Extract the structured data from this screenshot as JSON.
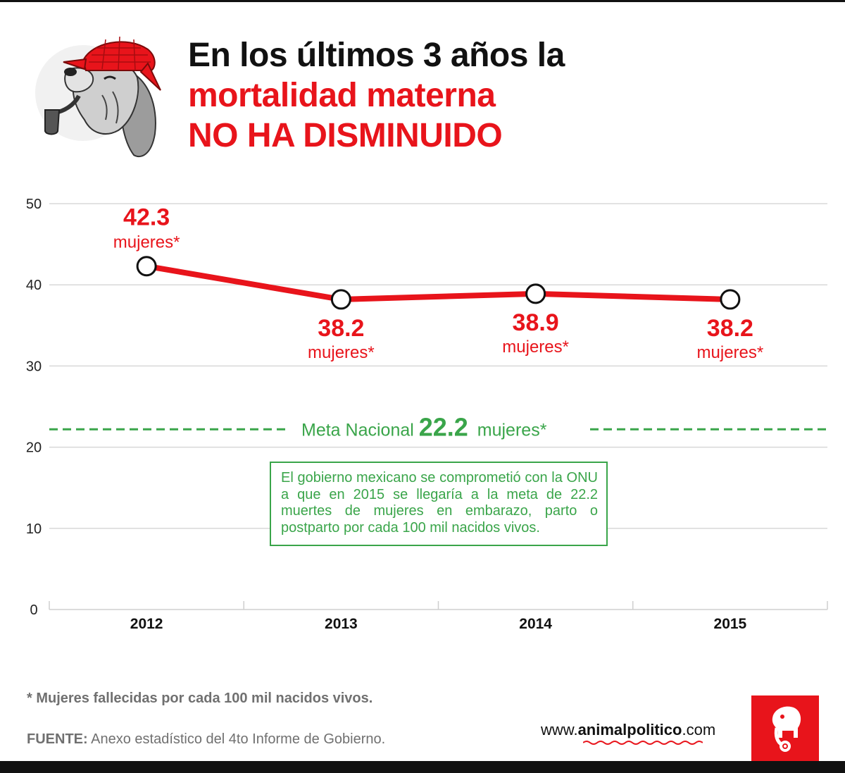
{
  "header": {
    "line1": "En los últimos 3 años la",
    "line2": "mortalidad materna",
    "line3": "NO HA DISMINUIDO"
  },
  "colors": {
    "accent_red": "#e8141b",
    "goal_green": "#3aa54a",
    "grid_gray": "#d8d8d8",
    "text_dark": "#111111",
    "text_gray": "#707070"
  },
  "chart_data": {
    "type": "line",
    "title": "",
    "xlabel": "",
    "ylabel": "",
    "categories": [
      "2012",
      "2013",
      "2014",
      "2015"
    ],
    "y_ticks": [
      "0",
      "10",
      "20",
      "30",
      "40",
      "50"
    ],
    "ylim": [
      0,
      50
    ],
    "grid": true,
    "series": [
      {
        "values": [
          42.3,
          38.2,
          38.9,
          38.2
        ]
      }
    ],
    "point_labels": [
      {
        "value": "42.3",
        "unit": "mujeres*",
        "placement": "above"
      },
      {
        "value": "38.2",
        "unit": "mujeres*",
        "placement": "below"
      },
      {
        "value": "38.9",
        "unit": "mujeres*",
        "placement": "below"
      },
      {
        "value": "38.2",
        "unit": "mujeres*",
        "placement": "below"
      }
    ],
    "reference_line": {
      "value": 22.2,
      "label_prefix": "Meta Nacional",
      "label_value": "22.2",
      "label_suffix": "mujeres*",
      "style": "dashed"
    }
  },
  "note_box": {
    "text": "El gobierno mexicano se comprometió con la ONU a que en 2015 se llegaría a la meta de 22.2 muertes de mujeres en embarazo, parto o postparto por cada 100 mil nacidos vivos."
  },
  "footer": {
    "footnote": "* Mujeres fallecidas por cada 100 mil nacidos vivos.",
    "source_label": "FUENTE:",
    "source_text": " Anexo estadístico del 4to Informe de Gobierno.",
    "site_prefix": "www.",
    "site_name": "animalpolitico",
    "site_suffix": ".com",
    "logo_icon": "elephant-icon",
    "mascot_icon": "detective-dog-icon"
  }
}
